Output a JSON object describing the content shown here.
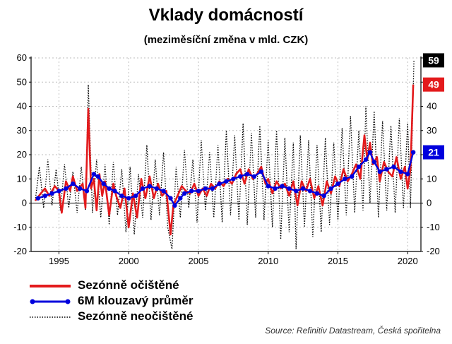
{
  "chart_data": {
    "type": "line",
    "title": "Vklady domácností",
    "subtitle": "(meziměsíční změna v mld. CZK)",
    "xlabel": "",
    "ylabel": "",
    "xlim": [
      1993.0,
      2020.95
    ],
    "ylim": [
      -20,
      60
    ],
    "x_ticks": [
      1995,
      2000,
      2005,
      2010,
      2015,
      2020
    ],
    "y_ticks": [
      -20,
      -10,
      0,
      10,
      20,
      30,
      40,
      50,
      60
    ],
    "grid": true,
    "legend_position": "bottom-left",
    "series": [
      {
        "name": "Sezónně očištěné",
        "color": "#e31a1c",
        "style": "solid",
        "points": [
          [
            1993.3,
            1
          ],
          [
            1993.7,
            4
          ],
          [
            1994.0,
            6
          ],
          [
            1994.3,
            3
          ],
          [
            1994.7,
            7
          ],
          [
            1995.0,
            5
          ],
          [
            1995.2,
            -4
          ],
          [
            1995.5,
            9
          ],
          [
            1995.8,
            5
          ],
          [
            1996.0,
            11
          ],
          [
            1996.3,
            5
          ],
          [
            1996.7,
            8
          ],
          [
            1996.9,
            -2
          ],
          [
            1997.1,
            39
          ],
          [
            1997.3,
            6
          ],
          [
            1997.5,
            10
          ],
          [
            1997.7,
            -3
          ],
          [
            1997.9,
            12
          ],
          [
            1998.1,
            3
          ],
          [
            1998.3,
            9
          ],
          [
            1998.6,
            -5
          ],
          [
            1998.9,
            8
          ],
          [
            1999.1,
            3
          ],
          [
            1999.4,
            -2
          ],
          [
            1999.7,
            6
          ],
          [
            2000.0,
            -10
          ],
          [
            2000.3,
            4
          ],
          [
            2000.6,
            -6
          ],
          [
            2000.9,
            10
          ],
          [
            2001.2,
            2
          ],
          [
            2001.5,
            11
          ],
          [
            2001.8,
            2
          ],
          [
            2002.1,
            8
          ],
          [
            2002.4,
            3
          ],
          [
            2002.7,
            5
          ],
          [
            2003.0,
            -13
          ],
          [
            2003.2,
            -1
          ],
          [
            2003.5,
            3
          ],
          [
            2003.8,
            7
          ],
          [
            2004.1,
            5
          ],
          [
            2004.4,
            4
          ],
          [
            2004.7,
            8
          ],
          [
            2005.0,
            3
          ],
          [
            2005.3,
            6
          ],
          [
            2005.6,
            3
          ],
          [
            2005.9,
            8
          ],
          [
            2006.2,
            6
          ],
          [
            2006.5,
            9
          ],
          [
            2006.8,
            7
          ],
          [
            2007.1,
            10
          ],
          [
            2007.4,
            8
          ],
          [
            2007.7,
            12
          ],
          [
            2008.0,
            14
          ],
          [
            2008.3,
            8
          ],
          [
            2008.6,
            14
          ],
          [
            2008.9,
            10
          ],
          [
            2009.2,
            12
          ],
          [
            2009.5,
            15
          ],
          [
            2009.8,
            8
          ],
          [
            2010.0,
            10
          ],
          [
            2010.3,
            4
          ],
          [
            2010.6,
            9
          ],
          [
            2010.9,
            6
          ],
          [
            2011.2,
            8
          ],
          [
            2011.5,
            3
          ],
          [
            2011.8,
            9
          ],
          [
            2012.1,
            -1
          ],
          [
            2012.4,
            9
          ],
          [
            2012.7,
            5
          ],
          [
            2013.0,
            10
          ],
          [
            2013.3,
            2
          ],
          [
            2013.6,
            7
          ],
          [
            2013.9,
            -1
          ],
          [
            2014.2,
            9
          ],
          [
            2014.5,
            4
          ],
          [
            2014.8,
            11
          ],
          [
            2015.1,
            7
          ],
          [
            2015.4,
            14
          ],
          [
            2015.7,
            9
          ],
          [
            2016.0,
            12
          ],
          [
            2016.3,
            16
          ],
          [
            2016.6,
            10
          ],
          [
            2016.9,
            28
          ],
          [
            2017.1,
            18
          ],
          [
            2017.3,
            25
          ],
          [
            2017.5,
            16
          ],
          [
            2017.8,
            19
          ],
          [
            2018.0,
            9
          ],
          [
            2018.3,
            17
          ],
          [
            2018.6,
            13
          ],
          [
            2018.9,
            11
          ],
          [
            2019.2,
            19
          ],
          [
            2019.5,
            10
          ],
          [
            2019.8,
            15
          ],
          [
            2020.0,
            6
          ],
          [
            2020.2,
            14
          ],
          [
            2020.4,
            49
          ]
        ]
      },
      {
        "name": "6M klouzavý průměr",
        "color": "#0000dd",
        "style": "solid-markers",
        "points": [
          [
            1993.5,
            2
          ],
          [
            1994.0,
            3
          ],
          [
            1994.5,
            4
          ],
          [
            1995.0,
            5
          ],
          [
            1995.5,
            6
          ],
          [
            1996.0,
            8
          ],
          [
            1996.5,
            6
          ],
          [
            1997.0,
            5
          ],
          [
            1997.5,
            12
          ],
          [
            1997.8,
            11
          ],
          [
            1998.2,
            8
          ],
          [
            1998.6,
            6
          ],
          [
            1999.0,
            5
          ],
          [
            1999.5,
            3
          ],
          [
            2000.0,
            2
          ],
          [
            2000.5,
            3
          ],
          [
            2001.0,
            6
          ],
          [
            2001.5,
            7
          ],
          [
            2002.0,
            6
          ],
          [
            2002.5,
            5
          ],
          [
            2003.0,
            2
          ],
          [
            2003.3,
            -1
          ],
          [
            2003.7,
            2
          ],
          [
            2004.0,
            4
          ],
          [
            2004.5,
            5
          ],
          [
            2005.0,
            5
          ],
          [
            2005.5,
            6
          ],
          [
            2006.0,
            6
          ],
          [
            2006.5,
            8
          ],
          [
            2007.0,
            9
          ],
          [
            2007.5,
            10
          ],
          [
            2008.0,
            11
          ],
          [
            2008.5,
            12
          ],
          [
            2009.0,
            11
          ],
          [
            2009.5,
            13
          ],
          [
            2010.0,
            7
          ],
          [
            2010.5,
            6
          ],
          [
            2011.0,
            7
          ],
          [
            2011.5,
            6
          ],
          [
            2012.0,
            5
          ],
          [
            2012.5,
            6
          ],
          [
            2013.0,
            5
          ],
          [
            2013.5,
            4
          ],
          [
            2014.0,
            3
          ],
          [
            2014.5,
            6
          ],
          [
            2015.0,
            8
          ],
          [
            2015.5,
            10
          ],
          [
            2016.0,
            11
          ],
          [
            2016.5,
            15
          ],
          [
            2017.0,
            18
          ],
          [
            2017.3,
            21
          ],
          [
            2017.6,
            17
          ],
          [
            2018.0,
            13
          ],
          [
            2018.5,
            14
          ],
          [
            2019.0,
            15
          ],
          [
            2019.5,
            13
          ],
          [
            2020.0,
            12
          ],
          [
            2020.4,
            21
          ]
        ]
      },
      {
        "name": "Sezónně neočištěné",
        "color": "#000000",
        "style": "dotted",
        "points": [
          [
            1993.3,
            1
          ],
          [
            1993.6,
            15
          ],
          [
            1993.9,
            -2
          ],
          [
            1994.2,
            18
          ],
          [
            1994.5,
            -1
          ],
          [
            1994.8,
            14
          ],
          [
            1995.1,
            -3
          ],
          [
            1995.4,
            16
          ],
          [
            1995.7,
            -2
          ],
          [
            1996.0,
            13
          ],
          [
            1996.3,
            -4
          ],
          [
            1996.6,
            15
          ],
          [
            1996.9,
            -3
          ],
          [
            1997.1,
            49
          ],
          [
            1997.4,
            -4
          ],
          [
            1997.7,
            18
          ],
          [
            1998.0,
            -6
          ],
          [
            1998.3,
            16
          ],
          [
            1998.6,
            -9
          ],
          [
            1998.9,
            17
          ],
          [
            1999.2,
            -5
          ],
          [
            1999.5,
            14
          ],
          [
            1999.8,
            -12
          ],
          [
            2000.1,
            15
          ],
          [
            2000.4,
            -13
          ],
          [
            2000.7,
            12
          ],
          [
            2001.0,
            -6
          ],
          [
            2001.3,
            24
          ],
          [
            2001.6,
            -7
          ],
          [
            2001.9,
            18
          ],
          [
            2002.2,
            -5
          ],
          [
            2002.5,
            21
          ],
          [
            2002.8,
            -10
          ],
          [
            2003.1,
            -19
          ],
          [
            2003.4,
            15
          ],
          [
            2003.7,
            -6
          ],
          [
            2004.0,
            22
          ],
          [
            2004.3,
            -2
          ],
          [
            2004.6,
            18
          ],
          [
            2004.9,
            -8
          ],
          [
            2005.2,
            26
          ],
          [
            2005.5,
            -3
          ],
          [
            2005.8,
            21
          ],
          [
            2006.1,
            -6
          ],
          [
            2006.4,
            24
          ],
          [
            2006.7,
            -8
          ],
          [
            2007.0,
            30
          ],
          [
            2007.3,
            -5
          ],
          [
            2007.6,
            28
          ],
          [
            2007.9,
            -7
          ],
          [
            2008.2,
            33
          ],
          [
            2008.5,
            -9
          ],
          [
            2008.8,
            29
          ],
          [
            2009.1,
            -6
          ],
          [
            2009.4,
            32
          ],
          [
            2009.7,
            -7
          ],
          [
            2010.0,
            26
          ],
          [
            2010.3,
            -10
          ],
          [
            2010.6,
            30
          ],
          [
            2010.9,
            -15
          ],
          [
            2011.2,
            27
          ],
          [
            2011.5,
            -12
          ],
          [
            2011.8,
            25
          ],
          [
            2012.0,
            -19
          ],
          [
            2012.3,
            28
          ],
          [
            2012.6,
            -10
          ],
          [
            2012.9,
            26
          ],
          [
            2013.2,
            -14
          ],
          [
            2013.5,
            24
          ],
          [
            2013.8,
            -12
          ],
          [
            2014.1,
            27
          ],
          [
            2014.4,
            -9
          ],
          [
            2014.7,
            25
          ],
          [
            2015.0,
            -7
          ],
          [
            2015.3,
            31
          ],
          [
            2015.6,
            -5
          ],
          [
            2015.9,
            36
          ],
          [
            2016.2,
            -4
          ],
          [
            2016.5,
            30
          ],
          [
            2016.8,
            -3
          ],
          [
            2017.0,
            40
          ],
          [
            2017.3,
            0
          ],
          [
            2017.6,
            38
          ],
          [
            2017.9,
            -6
          ],
          [
            2018.2,
            34
          ],
          [
            2018.5,
            -3
          ],
          [
            2018.8,
            32
          ],
          [
            2019.1,
            -4
          ],
          [
            2019.4,
            35
          ],
          [
            2019.7,
            -2
          ],
          [
            2020.0,
            33
          ],
          [
            2020.2,
            -2
          ],
          [
            2020.45,
            59
          ]
        ]
      }
    ],
    "end_labels": [
      {
        "text": "59",
        "value": 59,
        "color": "#000000"
      },
      {
        "text": "49",
        "value": 49,
        "color": "#e31a1c"
      },
      {
        "text": "21",
        "value": 21,
        "color": "#0000dd"
      }
    ]
  },
  "legend": {
    "items": [
      {
        "label": "Sezónně očištěné"
      },
      {
        "label": "6M klouzavý průměr"
      },
      {
        "label": "Sezónně neočištěné"
      }
    ]
  },
  "source": "Source: Refinitiv Datastream, Česká spořitelna"
}
